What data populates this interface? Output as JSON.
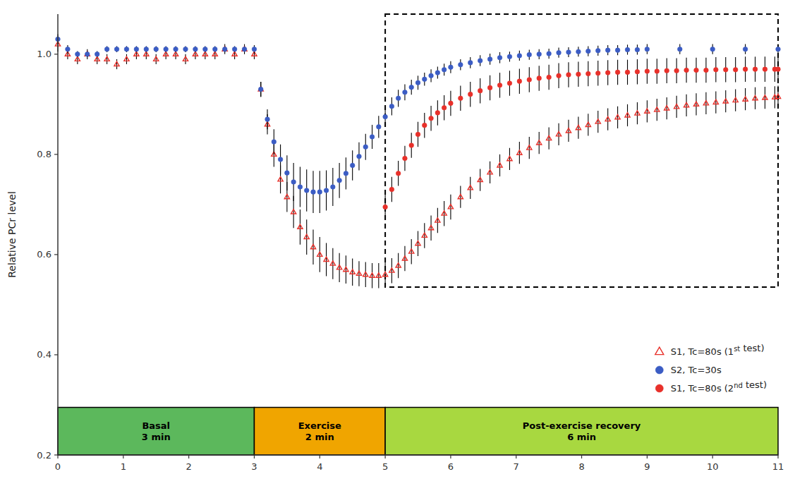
{
  "chart_data": {
    "type": "scatter",
    "title": "",
    "ylabel": "Relative PCr level",
    "xlabel": "",
    "xlim": [
      0,
      11
    ],
    "ylim": [
      0.2,
      1.08
    ],
    "xticks": [
      0,
      1,
      2,
      3,
      4,
      5,
      6,
      7,
      8,
      9,
      10,
      11
    ],
    "yticks": [
      0.2,
      0.4,
      0.6,
      0.8,
      {
        "value": 1,
        "label": "1.0"
      }
    ],
    "grid": false,
    "legend": "lower right",
    "phase_bar_ylim": [
      0.2,
      0.295
    ],
    "phases": [
      {
        "label": "Basal\n3 min",
        "start": 0,
        "end": 3,
        "color": "#5cb85c"
      },
      {
        "label": "Exercise\n2 min",
        "start": 3,
        "end": 5,
        "color": "#f0a500"
      },
      {
        "label": "Post-exercise recovery\n6 min",
        "start": 5,
        "end": 11,
        "color": "#a8d840"
      }
    ],
    "highlight_box": {
      "x": 5.0,
      "y": 0.535,
      "width": 6.0,
      "height": 0.545
    },
    "series": [
      {
        "name": "S1, Tc=80s (1st test)",
        "color": "#e8302a",
        "marker": "triangle-open",
        "x": [
          0.0,
          0.15,
          0.3,
          0.45,
          0.6,
          0.75,
          0.9,
          1.05,
          1.2,
          1.35,
          1.5,
          1.65,
          1.8,
          1.95,
          2.1,
          2.25,
          2.4,
          2.55,
          2.7,
          2.85,
          3.0,
          3.1,
          3.2,
          3.3,
          3.4,
          3.5,
          3.6,
          3.7,
          3.8,
          3.9,
          4.0,
          4.1,
          4.2,
          4.3,
          4.4,
          4.5,
          4.6,
          4.7,
          4.8,
          4.9,
          5.0,
          5.1,
          5.2,
          5.3,
          5.4,
          5.5,
          5.6,
          5.7,
          5.8,
          5.9,
          6.0,
          6.15,
          6.3,
          6.45,
          6.6,
          6.75,
          6.9,
          7.05,
          7.2,
          7.35,
          7.5,
          7.65,
          7.8,
          7.95,
          8.1,
          8.25,
          8.4,
          8.55,
          8.7,
          8.85,
          9.0,
          9.15,
          9.3,
          9.45,
          9.6,
          9.75,
          9.9,
          10.05,
          10.2,
          10.35,
          10.5,
          10.65,
          10.8,
          10.95,
          11.0
        ],
        "values": [
          1.02,
          1.0,
          0.99,
          1.0,
          0.99,
          0.99,
          0.98,
          0.99,
          1.0,
          1.0,
          0.99,
          1.0,
          1.0,
          0.99,
          1.0,
          1.0,
          1.0,
          1.01,
          1.0,
          1.01,
          1.0,
          0.93,
          0.86,
          0.8,
          0.75,
          0.715,
          0.685,
          0.655,
          0.635,
          0.615,
          0.6,
          0.59,
          0.582,
          0.574,
          0.57,
          0.565,
          0.562,
          0.56,
          0.558,
          0.558,
          0.56,
          0.568,
          0.578,
          0.592,
          0.606,
          0.622,
          0.638,
          0.653,
          0.668,
          0.682,
          0.695,
          0.715,
          0.733,
          0.749,
          0.764,
          0.778,
          0.791,
          0.803,
          0.813,
          0.823,
          0.832,
          0.84,
          0.847,
          0.853,
          0.859,
          0.865,
          0.87,
          0.874,
          0.878,
          0.882,
          0.886,
          0.889,
          0.892,
          0.895,
          0.898,
          0.9,
          0.902,
          0.904,
          0.906,
          0.908,
          0.91,
          0.912,
          0.913,
          0.914,
          0.915
        ],
        "errors": [
          0.015,
          0.01,
          0.01,
          0.01,
          0.01,
          0.01,
          0.01,
          0.01,
          0.01,
          0.01,
          0.01,
          0.01,
          0.01,
          0.01,
          0.01,
          0.01,
          0.01,
          0.01,
          0.01,
          0.01,
          0.01,
          0.015,
          0.02,
          0.025,
          0.028,
          0.03,
          0.032,
          0.035,
          0.035,
          0.035,
          0.035,
          0.033,
          0.031,
          0.029,
          0.028,
          0.027,
          0.025,
          0.025,
          0.025,
          0.025,
          0.025,
          0.025,
          0.025,
          0.025,
          0.025,
          0.025,
          0.025,
          0.025,
          0.025,
          0.025,
          0.025,
          0.022,
          0.022,
          0.022,
          0.022,
          0.022,
          0.022,
          0.022,
          0.022,
          0.022,
          0.022,
          0.022,
          0.022,
          0.022,
          0.022,
          0.022,
          0.022,
          0.022,
          0.022,
          0.022,
          0.022,
          0.022,
          0.022,
          0.022,
          0.022,
          0.022,
          0.022,
          0.022,
          0.022,
          0.022,
          0.022,
          0.022,
          0.022,
          0.022,
          0.022
        ]
      },
      {
        "name": "S2, Tc=30s",
        "color": "#3b5cc4",
        "marker": "circle",
        "x": [
          0.0,
          0.15,
          0.3,
          0.45,
          0.6,
          0.75,
          0.9,
          1.05,
          1.2,
          1.35,
          1.5,
          1.65,
          1.8,
          1.95,
          2.1,
          2.25,
          2.4,
          2.55,
          2.7,
          2.85,
          3.0,
          3.1,
          3.2,
          3.3,
          3.4,
          3.5,
          3.6,
          3.7,
          3.8,
          3.9,
          4.0,
          4.1,
          4.2,
          4.3,
          4.4,
          4.5,
          4.6,
          4.7,
          4.8,
          4.9,
          5.0,
          5.1,
          5.2,
          5.3,
          5.4,
          5.5,
          5.6,
          5.7,
          5.8,
          5.9,
          6.0,
          6.15,
          6.3,
          6.45,
          6.6,
          6.75,
          6.9,
          7.05,
          7.2,
          7.35,
          7.5,
          7.65,
          7.8,
          7.95,
          8.1,
          8.25,
          8.4,
          8.55,
          8.7,
          8.85,
          9.0,
          9.5,
          10.0,
          10.5,
          11.0
        ],
        "values": [
          1.03,
          1.01,
          1.0,
          1.0,
          1.0,
          1.01,
          1.01,
          1.01,
          1.01,
          1.01,
          1.01,
          1.01,
          1.01,
          1.01,
          1.01,
          1.01,
          1.01,
          1.01,
          1.01,
          1.01,
          1.01,
          0.93,
          0.87,
          0.825,
          0.79,
          0.763,
          0.745,
          0.735,
          0.728,
          0.725,
          0.725,
          0.728,
          0.735,
          0.748,
          0.762,
          0.778,
          0.796,
          0.815,
          0.835,
          0.855,
          0.875,
          0.896,
          0.912,
          0.924,
          0.934,
          0.943,
          0.95,
          0.957,
          0.963,
          0.969,
          0.974,
          0.979,
          0.983,
          0.987,
          0.99,
          0.993,
          0.995,
          0.997,
          0.999,
          1.0,
          1.001,
          1.003,
          1.004,
          1.005,
          1.006,
          1.007,
          1.008,
          1.008,
          1.009,
          1.009,
          1.01,
          1.01,
          1.01,
          1.01,
          1.01
        ],
        "errors": [
          0.01,
          0.008,
          0.006,
          0.006,
          0.006,
          0.006,
          0.006,
          0.006,
          0.006,
          0.006,
          0.006,
          0.006,
          0.006,
          0.006,
          0.006,
          0.006,
          0.006,
          0.006,
          0.006,
          0.006,
          0.008,
          0.015,
          0.02,
          0.025,
          0.03,
          0.035,
          0.038,
          0.04,
          0.042,
          0.042,
          0.042,
          0.04,
          0.038,
          0.035,
          0.032,
          0.03,
          0.028,
          0.026,
          0.024,
          0.022,
          0.02,
          0.018,
          0.017,
          0.016,
          0.015,
          0.014,
          0.013,
          0.013,
          0.012,
          0.012,
          0.012,
          0.011,
          0.011,
          0.011,
          0.011,
          0.011,
          0.01,
          0.01,
          0.01,
          0.01,
          0.01,
          0.01,
          0.01,
          0.01,
          0.01,
          0.01,
          0.01,
          0.01,
          0.01,
          0.01,
          0.01,
          0.01,
          0.01,
          0.01,
          0.01
        ]
      },
      {
        "name": "S1, Tc=80s (2nd test)",
        "color": "#e8302a",
        "marker": "circle",
        "x": [
          5.0,
          5.1,
          5.2,
          5.3,
          5.4,
          5.5,
          5.6,
          5.7,
          5.8,
          5.9,
          6.0,
          6.15,
          6.3,
          6.45,
          6.6,
          6.75,
          6.9,
          7.05,
          7.2,
          7.35,
          7.5,
          7.65,
          7.8,
          7.95,
          8.1,
          8.25,
          8.4,
          8.55,
          8.7,
          8.85,
          9.0,
          9.15,
          9.3,
          9.45,
          9.6,
          9.75,
          9.9,
          10.05,
          10.2,
          10.35,
          10.5,
          10.65,
          10.8,
          10.95,
          11.0
        ],
        "values": [
          0.695,
          0.73,
          0.762,
          0.792,
          0.818,
          0.84,
          0.858,
          0.872,
          0.883,
          0.893,
          0.902,
          0.912,
          0.92,
          0.927,
          0.933,
          0.938,
          0.942,
          0.946,
          0.949,
          0.952,
          0.954,
          0.957,
          0.959,
          0.96,
          0.961,
          0.962,
          0.963,
          0.964,
          0.964,
          0.965,
          0.966,
          0.966,
          0.967,
          0.967,
          0.968,
          0.968,
          0.968,
          0.969,
          0.969,
          0.969,
          0.97,
          0.97,
          0.97,
          0.97,
          0.97
        ],
        "errors": [
          0.025,
          0.025,
          0.025,
          0.025,
          0.025,
          0.025,
          0.025,
          0.025,
          0.025,
          0.025,
          0.025,
          0.025,
          0.025,
          0.025,
          0.025,
          0.025,
          0.025,
          0.025,
          0.025,
          0.025,
          0.025,
          0.025,
          0.025,
          0.025,
          0.025,
          0.025,
          0.025,
          0.025,
          0.025,
          0.025,
          0.025,
          0.025,
          0.025,
          0.025,
          0.025,
          0.025,
          0.025,
          0.025,
          0.025,
          0.025,
          0.025,
          0.025,
          0.025,
          0.025,
          0.025
        ]
      }
    ]
  }
}
